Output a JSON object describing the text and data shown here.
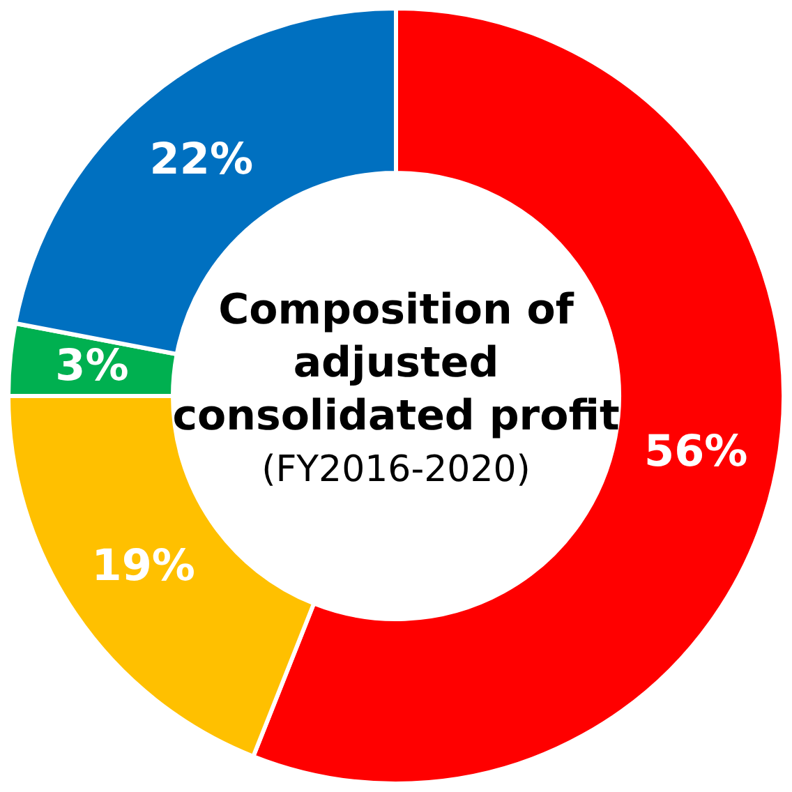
{
  "chart_data": {
    "type": "donut",
    "title": "Composition of adjusted consolidated profit",
    "subtitle": "(FY2016-2020)",
    "categories": [
      null,
      null,
      null,
      null
    ],
    "values": [
      56,
      19,
      3,
      22
    ],
    "colors": [
      "#ff0000",
      "#ffc000",
      "#00b050",
      "#0070c0"
    ],
    "value_labels": [
      "56%",
      "19%",
      "3%",
      "22%"
    ]
  }
}
